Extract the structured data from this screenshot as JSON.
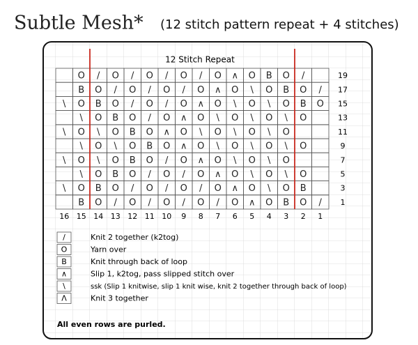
{
  "header": {
    "title": "Subtle Mesh*",
    "subtitle": "(12 stitch pattern repeat + 4 stitches)"
  },
  "chart": {
    "repeat_label": "12 Stitch Repeat",
    "columns": [
      "16",
      "15",
      "14",
      "13",
      "12",
      "11",
      "10",
      "9",
      "8",
      "7",
      "6",
      "5",
      "4",
      "3",
      "2",
      "1"
    ],
    "rows": [
      {
        "number": "19",
        "cells": [
          null,
          "O",
          "/",
          "O",
          "/",
          "O",
          "/",
          "O",
          "/",
          "O",
          "∧",
          "O",
          "B",
          "O",
          "/",
          null
        ]
      },
      {
        "number": "17",
        "cells": [
          null,
          "B",
          "O",
          "/",
          "O",
          "/",
          "O",
          "/",
          "O",
          "∧",
          "O",
          "\\",
          "O",
          "B",
          "O",
          "/"
        ]
      },
      {
        "number": "15",
        "cells": [
          "\\",
          "O",
          "B",
          "O",
          "/",
          "O",
          "/",
          "O",
          "∧",
          "O",
          "\\",
          "O",
          "\\",
          "O",
          "B",
          "O"
        ]
      },
      {
        "number": "13",
        "cells": [
          null,
          "\\",
          "O",
          "B",
          "O",
          "/",
          "O",
          "∧",
          "O",
          "\\",
          "O",
          "\\",
          "O",
          "\\",
          "O",
          null
        ]
      },
      {
        "number": "11",
        "cells": [
          "\\",
          "O",
          "\\",
          "O",
          "B",
          "O",
          "∧",
          "O",
          "\\",
          "O",
          "\\",
          "O",
          "\\",
          "O",
          null,
          null
        ]
      },
      {
        "number": "9",
        "cells": [
          null,
          "\\",
          "O",
          "\\",
          "O",
          "B",
          "O",
          "∧",
          "O",
          "\\",
          "O",
          "\\",
          "O",
          "\\",
          "O",
          null
        ]
      },
      {
        "number": "7",
        "cells": [
          "\\",
          "O",
          "\\",
          "O",
          "B",
          "O",
          "/",
          "O",
          "∧",
          "O",
          "\\",
          "O",
          "\\",
          "O",
          null,
          null
        ]
      },
      {
        "number": "5",
        "cells": [
          null,
          "\\",
          "O",
          "B",
          "O",
          "/",
          "O",
          "/",
          "O",
          "∧",
          "O",
          "\\",
          "O",
          "\\",
          "O",
          null
        ]
      },
      {
        "number": "3",
        "cells": [
          "\\",
          "O",
          "B",
          "O",
          "/",
          "O",
          "/",
          "O",
          "/",
          "O",
          "∧",
          "O",
          "\\",
          "O",
          "B",
          null
        ]
      },
      {
        "number": "1",
        "cells": [
          null,
          "B",
          "O",
          "/",
          "O",
          "/",
          "O",
          "/",
          "O",
          "/",
          "O",
          "∧",
          "O",
          "B",
          "O",
          "/"
        ]
      }
    ]
  },
  "legend": [
    {
      "symbol": "/",
      "text": "Knit 2 together (k2tog)"
    },
    {
      "symbol": "O",
      "text": "Yarn over"
    },
    {
      "symbol": "B",
      "text": "Knit through back of loop"
    },
    {
      "symbol": "∧",
      "text": "Slip 1, k2tog, pass slipped stitch over"
    },
    {
      "symbol": "\\",
      "text": "ssk (Slip 1 knitwise, slip 1 knit wise, knit 2 together through back of loop)"
    },
    {
      "symbol": "Λ",
      "text": "Knit 3 together"
    }
  ],
  "note": "All even rows are purled."
}
